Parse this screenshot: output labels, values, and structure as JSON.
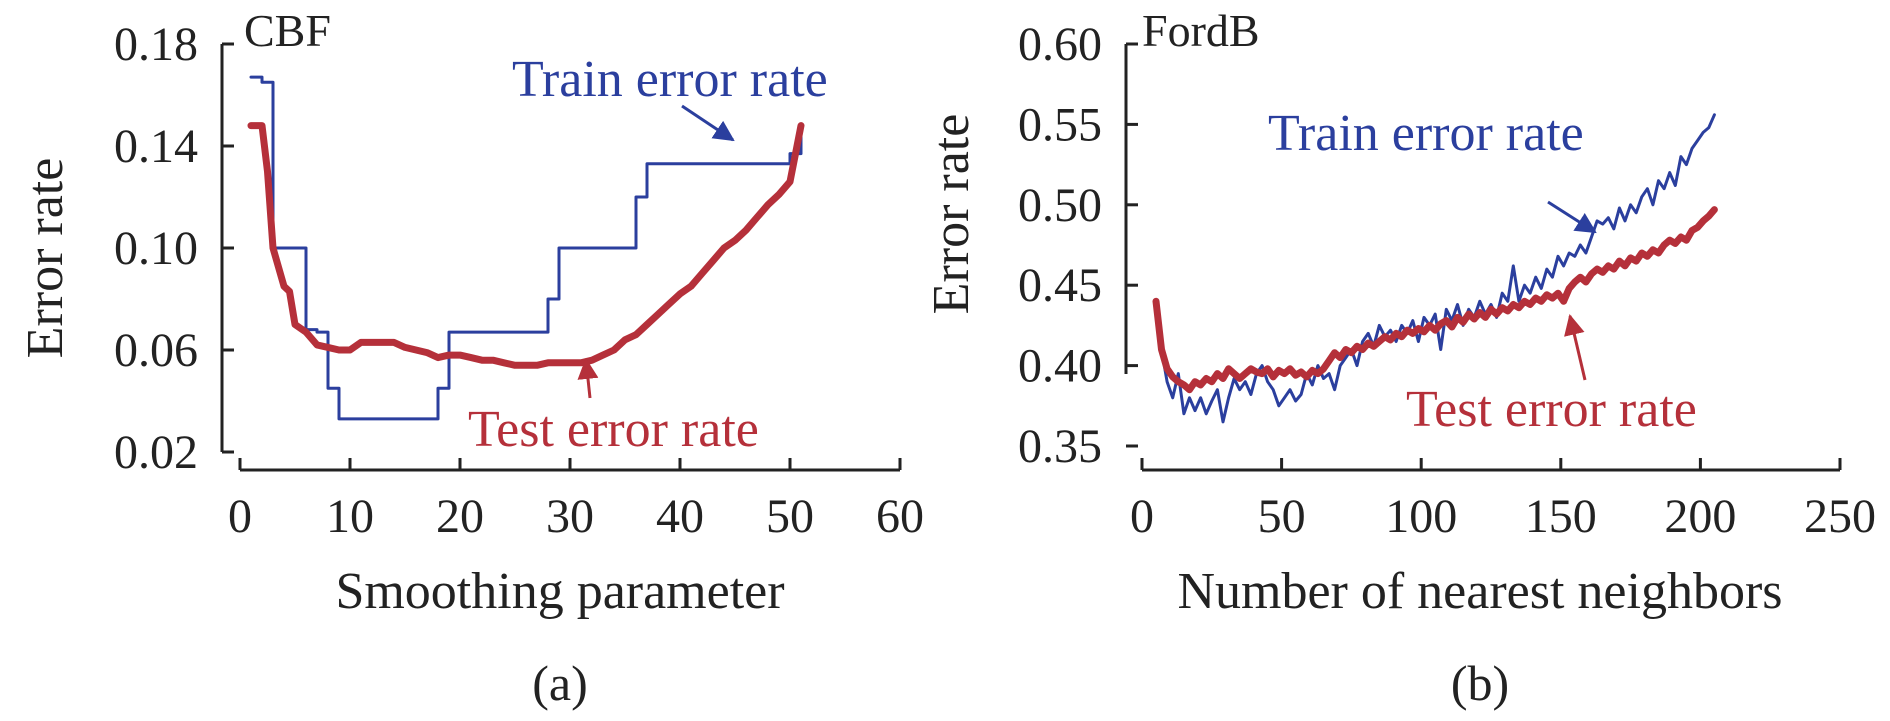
{
  "chart_data": [
    {
      "type": "line",
      "title": "CBF",
      "caption": "(a)",
      "xlabel": "Smoothing parameter",
      "ylabel": "Error rate",
      "xlim": [
        0,
        60
      ],
      "ylim": [
        0.02,
        0.18
      ],
      "xticks": [
        "0",
        "10",
        "20",
        "30",
        "40",
        "50",
        "60"
      ],
      "yticks": [
        "0.02",
        "0.06",
        "0.10",
        "0.14",
        "0.18"
      ],
      "grid": false,
      "annotations": {
        "train": "Train error rate",
        "test": "Test error rate"
      },
      "series": [
        {
          "name": "Train error rate",
          "color": "#2b3f9e",
          "x": [
            1,
            2,
            2,
            3,
            3,
            6,
            6,
            7,
            7,
            8,
            8,
            9,
            9,
            18,
            18,
            19,
            19,
            28,
            28,
            29,
            29,
            36,
            36,
            37,
            37,
            50,
            50,
            51,
            51
          ],
          "y": [
            0.167,
            0.167,
            0.165,
            0.165,
            0.1,
            0.1,
            0.068,
            0.068,
            0.067,
            0.067,
            0.045,
            0.045,
            0.033,
            0.033,
            0.045,
            0.045,
            0.067,
            0.067,
            0.08,
            0.08,
            0.1,
            0.1,
            0.12,
            0.12,
            0.133,
            0.133,
            0.137,
            0.137,
            0.147
          ]
        },
        {
          "name": "Test error rate",
          "color": "#b5303a",
          "x": [
            1,
            2,
            2.5,
            3,
            4,
            4.5,
            5,
            6,
            7,
            8,
            9,
            10,
            11,
            12,
            13,
            14,
            15,
            16,
            17,
            18,
            19,
            20,
            21,
            22,
            23,
            24,
            25,
            26,
            27,
            28,
            29,
            30,
            31,
            32,
            33,
            34,
            35,
            36,
            37,
            38,
            39,
            40,
            41,
            42,
            43,
            44,
            45,
            46,
            47,
            48,
            49,
            50,
            51
          ],
          "y": [
            0.148,
            0.148,
            0.13,
            0.1,
            0.085,
            0.083,
            0.07,
            0.067,
            0.062,
            0.061,
            0.06,
            0.06,
            0.063,
            0.063,
            0.063,
            0.063,
            0.061,
            0.06,
            0.059,
            0.057,
            0.058,
            0.058,
            0.057,
            0.056,
            0.056,
            0.055,
            0.054,
            0.054,
            0.054,
            0.055,
            0.055,
            0.055,
            0.055,
            0.056,
            0.058,
            0.06,
            0.064,
            0.066,
            0.07,
            0.074,
            0.078,
            0.082,
            0.085,
            0.09,
            0.095,
            0.1,
            0.103,
            0.107,
            0.112,
            0.117,
            0.121,
            0.126,
            0.148
          ]
        }
      ]
    },
    {
      "type": "line",
      "title": "FordB",
      "caption": "(b)",
      "xlabel": "Number of nearest neighbors",
      "ylabel": "Error rate",
      "xlim": [
        0,
        250
      ],
      "ylim": [
        0.35,
        0.6
      ],
      "xticks": [
        "0",
        "50",
        "100",
        "150",
        "200",
        "250"
      ],
      "yticks": [
        "0.35",
        "0.40",
        "0.45",
        "0.50",
        "0.55",
        "0.60"
      ],
      "grid": false,
      "annotations": {
        "train": "Train error rate",
        "test": "Test error rate"
      },
      "series": [
        {
          "name": "Train error rate",
          "color": "#2b3f9e",
          "x": [
            5,
            7,
            9,
            11,
            13,
            15,
            17,
            19,
            21,
            23,
            25,
            27,
            29,
            31,
            33,
            35,
            37,
            39,
            41,
            43,
            45,
            47,
            49,
            51,
            53,
            55,
            57,
            59,
            61,
            63,
            65,
            67,
            69,
            71,
            73,
            75,
            77,
            79,
            81,
            83,
            85,
            87,
            89,
            91,
            93,
            95,
            97,
            99,
            101,
            103,
            105,
            107,
            109,
            111,
            113,
            115,
            117,
            119,
            121,
            123,
            125,
            127,
            129,
            131,
            133,
            135,
            137,
            139,
            141,
            143,
            145,
            147,
            149,
            151,
            153,
            155,
            157,
            159,
            161,
            163,
            165,
            167,
            169,
            171,
            173,
            175,
            177,
            179,
            181,
            183,
            185,
            187,
            189,
            191,
            193,
            195,
            197,
            199,
            201,
            203,
            205
          ],
          "y": [
            0.44,
            0.41,
            0.39,
            0.38,
            0.395,
            0.37,
            0.38,
            0.372,
            0.38,
            0.37,
            0.378,
            0.385,
            0.365,
            0.38,
            0.392,
            0.385,
            0.39,
            0.382,
            0.395,
            0.4,
            0.39,
            0.385,
            0.375,
            0.38,
            0.385,
            0.378,
            0.382,
            0.395,
            0.388,
            0.4,
            0.392,
            0.395,
            0.385,
            0.4,
            0.405,
            0.41,
            0.4,
            0.415,
            0.42,
            0.412,
            0.425,
            0.418,
            0.422,
            0.415,
            0.425,
            0.42,
            0.428,
            0.415,
            0.43,
            0.425,
            0.432,
            0.41,
            0.435,
            0.428,
            0.438,
            0.425,
            0.435,
            0.43,
            0.44,
            0.432,
            0.438,
            0.43,
            0.445,
            0.44,
            0.462,
            0.44,
            0.45,
            0.445,
            0.455,
            0.448,
            0.46,
            0.455,
            0.468,
            0.462,
            0.47,
            0.468,
            0.475,
            0.47,
            0.48,
            0.49,
            0.488,
            0.492,
            0.485,
            0.498,
            0.49,
            0.5,
            0.495,
            0.505,
            0.51,
            0.5,
            0.515,
            0.51,
            0.52,
            0.512,
            0.53,
            0.525,
            0.535,
            0.54,
            0.545,
            0.548,
            0.556
          ]
        },
        {
          "name": "Test error rate",
          "color": "#b5303a",
          "x": [
            5,
            7,
            9,
            11,
            13,
            15,
            17,
            19,
            21,
            23,
            25,
            27,
            29,
            31,
            33,
            35,
            37,
            39,
            41,
            43,
            45,
            47,
            49,
            51,
            53,
            55,
            57,
            59,
            61,
            63,
            65,
            67,
            69,
            71,
            73,
            75,
            77,
            79,
            81,
            83,
            85,
            87,
            89,
            91,
            93,
            95,
            97,
            99,
            101,
            103,
            105,
            107,
            109,
            111,
            113,
            115,
            117,
            119,
            121,
            123,
            125,
            127,
            129,
            131,
            133,
            135,
            137,
            139,
            141,
            143,
            145,
            147,
            149,
            151,
            153,
            155,
            157,
            159,
            161,
            163,
            165,
            167,
            169,
            171,
            173,
            175,
            177,
            179,
            181,
            183,
            185,
            187,
            189,
            191,
            193,
            195,
            197,
            199,
            201,
            203,
            205
          ],
          "y": [
            0.44,
            0.41,
            0.398,
            0.393,
            0.39,
            0.388,
            0.385,
            0.39,
            0.388,
            0.392,
            0.39,
            0.395,
            0.392,
            0.398,
            0.395,
            0.392,
            0.395,
            0.398,
            0.396,
            0.395,
            0.398,
            0.393,
            0.397,
            0.395,
            0.398,
            0.394,
            0.396,
            0.393,
            0.397,
            0.395,
            0.398,
            0.403,
            0.408,
            0.405,
            0.41,
            0.408,
            0.412,
            0.41,
            0.414,
            0.412,
            0.415,
            0.418,
            0.416,
            0.42,
            0.418,
            0.422,
            0.42,
            0.423,
            0.421,
            0.425,
            0.422,
            0.426,
            0.428,
            0.424,
            0.43,
            0.427,
            0.432,
            0.429,
            0.433,
            0.43,
            0.435,
            0.432,
            0.436,
            0.434,
            0.438,
            0.436,
            0.44,
            0.438,
            0.442,
            0.44,
            0.444,
            0.442,
            0.445,
            0.44,
            0.448,
            0.452,
            0.455,
            0.452,
            0.457,
            0.46,
            0.458,
            0.462,
            0.46,
            0.465,
            0.462,
            0.467,
            0.465,
            0.47,
            0.468,
            0.472,
            0.47,
            0.475,
            0.478,
            0.476,
            0.48,
            0.478,
            0.484,
            0.486,
            0.49,
            0.493,
            0.497
          ]
        }
      ]
    }
  ]
}
